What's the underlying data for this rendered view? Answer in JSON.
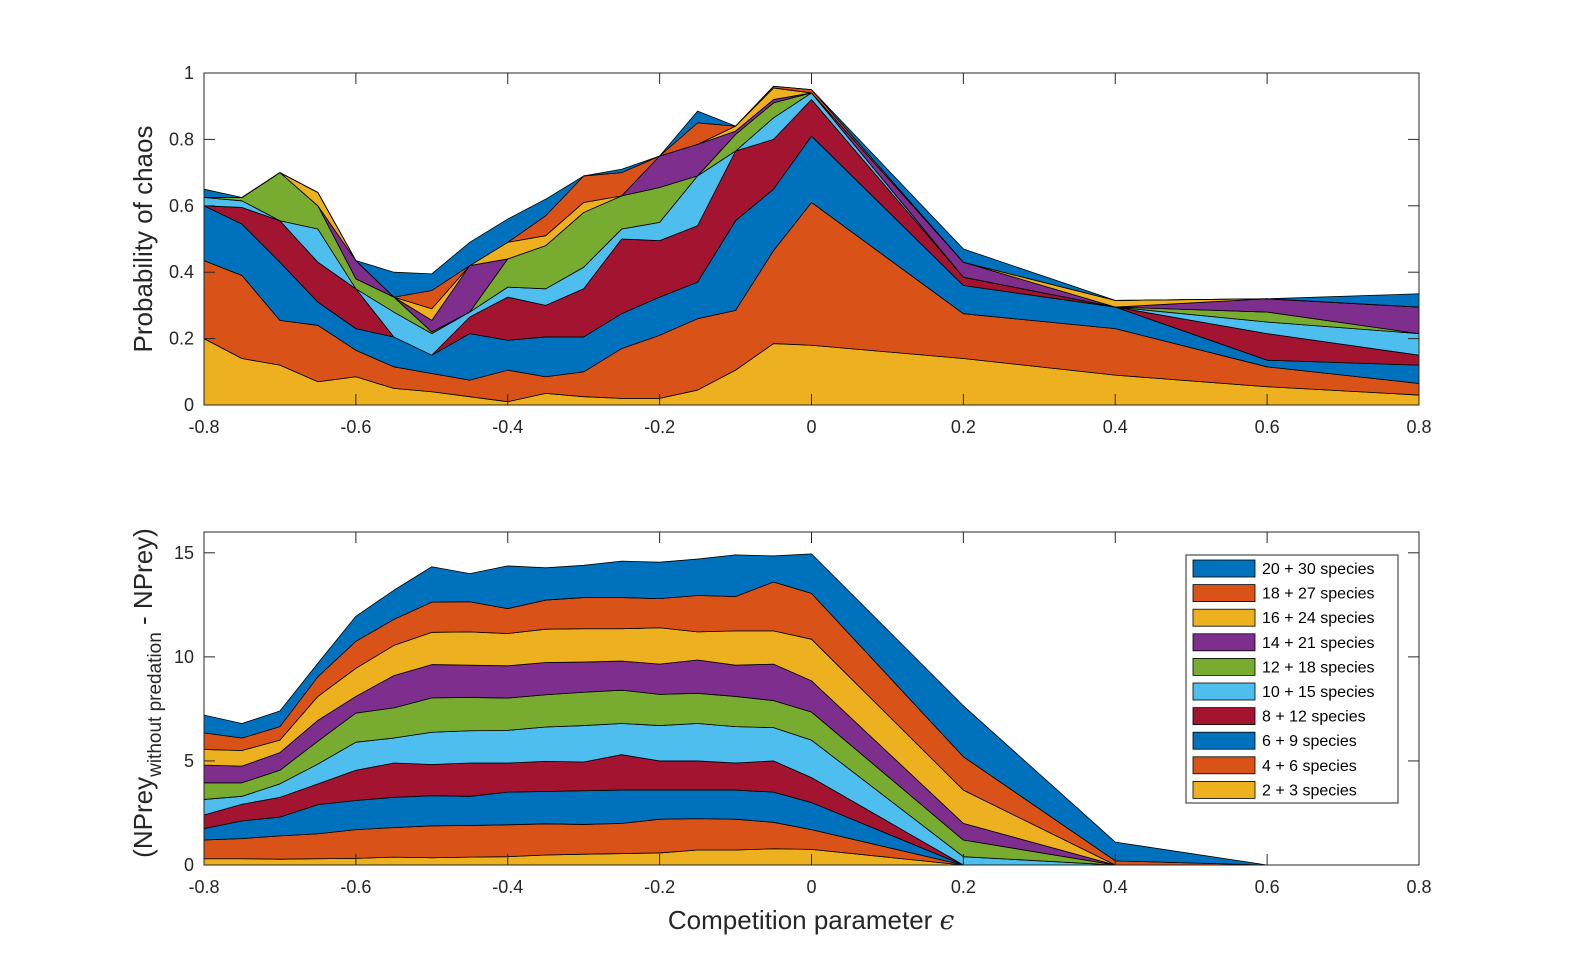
{
  "chart_data": [
    {
      "type": "area",
      "stacked": true,
      "ylabel": "Probability of chaos",
      "xlim": [
        -0.8,
        0.8
      ],
      "ylim": [
        0,
        1
      ],
      "xticks": [
        "-0.8",
        "-0.6",
        "-0.4",
        "-0.2",
        "0",
        "0.2",
        "0.4",
        "0.6",
        "0.8"
      ],
      "yticks": [
        "0",
        "0.2",
        "0.4",
        "0.6",
        "0.8",
        "1"
      ],
      "x": [
        -0.8,
        -0.75,
        -0.7,
        -0.65,
        -0.6,
        -0.55,
        -0.5,
        -0.45,
        -0.4,
        -0.35,
        -0.3,
        -0.25,
        -0.2,
        -0.15,
        -0.1,
        -0.05,
        0,
        0.2,
        0.4,
        0.6,
        0.8
      ],
      "series": [
        {
          "name": "2 + 3 species",
          "color": "#EDB120",
          "values": [
            0.2,
            0.14,
            0.12,
            0.07,
            0.085,
            0.05,
            0.04,
            0.025,
            0.01,
            0.035,
            0.025,
            0.02,
            0.02,
            0.045,
            0.105,
            0.185,
            0.18,
            0.14,
            0.09,
            0.055,
            0.03
          ]
        },
        {
          "name": "4 + 6 species",
          "color": "#D95319",
          "values": [
            0.235,
            0.25,
            0.135,
            0.17,
            0.08,
            0.065,
            0.055,
            0.05,
            0.095,
            0.05,
            0.075,
            0.15,
            0.19,
            0.215,
            0.18,
            0.28,
            0.43,
            0.135,
            0.14,
            0.06,
            0.035
          ]
        },
        {
          "name": "6 + 9 species",
          "color": "#0072BD",
          "values": [
            0.165,
            0.155,
            0.175,
            0.07,
            0.065,
            0.09,
            0.055,
            0.14,
            0.09,
            0.12,
            0.105,
            0.105,
            0.115,
            0.11,
            0.27,
            0.185,
            0.2,
            0.085,
            0.065,
            0.02,
            0.055
          ]
        },
        {
          "name": "8 + 12 species",
          "color": "#A2142F",
          "values": [
            0.0,
            0.05,
            0.125,
            0.12,
            0.12,
            0.0,
            0.0,
            0.05,
            0.13,
            0.095,
            0.145,
            0.225,
            0.17,
            0.17,
            0.21,
            0.15,
            0.11,
            0.025,
            0.0,
            0.08,
            0.03
          ]
        },
        {
          "name": "10 + 15 species",
          "color": "#4DBEEE",
          "values": [
            0.025,
            0.02,
            0.0,
            0.1,
            0.0,
            0.075,
            0.065,
            0.015,
            0.03,
            0.05,
            0.065,
            0.03,
            0.055,
            0.15,
            0.0,
            0.065,
            0.02,
            0.0,
            0.0,
            0.035,
            0.065
          ]
        },
        {
          "name": "12 + 18 species",
          "color": "#77AC30",
          "values": [
            0.0,
            0.01,
            0.145,
            0.07,
            0.03,
            0.045,
            0.005,
            0.0,
            0.085,
            0.13,
            0.165,
            0.1,
            0.105,
            0.0,
            0.05,
            0.045,
            0.0,
            0.0,
            0.0,
            0.03,
            0.0
          ]
        },
        {
          "name": "14 + 21 species",
          "color": "#7E2F8E",
          "values": [
            0.0,
            0.0,
            0.0,
            0.0,
            0.055,
            0.0,
            0.035,
            0.14,
            0.0,
            0.0,
            0.0,
            0.0,
            0.095,
            0.095,
            0.01,
            0.01,
            0.0,
            0.045,
            0.0,
            0.04,
            0.08
          ]
        },
        {
          "name": "16 + 24 species",
          "color": "#EDB120",
          "values": [
            0.0,
            0.0,
            0.0,
            0.04,
            0.0,
            0.0,
            0.035,
            0.0,
            0.05,
            0.03,
            0.03,
            0.0,
            0.0,
            0.0,
            0.015,
            0.035,
            0.0,
            0.0,
            0.02,
            0.0,
            0.0
          ]
        },
        {
          "name": "18 + 27 species",
          "color": "#D95319",
          "values": [
            0.0,
            0.0,
            0.0,
            0.0,
            0.0,
            0.0,
            0.055,
            0.0,
            0.0,
            0.06,
            0.08,
            0.07,
            0.0,
            0.065,
            0.0,
            0.005,
            0.01,
            0.0,
            0.0,
            0.0,
            0.0
          ]
        },
        {
          "name": "20 + 30 species",
          "color": "#0072BD",
          "values": [
            0.025,
            0.0,
            0.0,
            0.0,
            0.0,
            0.075,
            0.05,
            0.07,
            0.07,
            0.05,
            0.0,
            0.01,
            0.0,
            0.035,
            0.0,
            0.0,
            0.0,
            0.04,
            0.0,
            0.0,
            0.04
          ]
        }
      ]
    },
    {
      "type": "area",
      "stacked": true,
      "ylabel": "(NPrey",
      "ylabel_sub": "without predation",
      "ylabel_end": " - NPrey)",
      "xlabel": "Competition parameter ",
      "xlabel_symbol": "ϵ",
      "xlim": [
        -0.8,
        0.8
      ],
      "ylim": [
        0,
        16
      ],
      "xticks": [
        "-0.8",
        "-0.6",
        "-0.4",
        "-0.2",
        "0",
        "0.2",
        "0.4",
        "0.6",
        "0.8"
      ],
      "yticks": [
        "0",
        "5",
        "10",
        "15"
      ],
      "legend": "top-right",
      "x": [
        -0.8,
        -0.75,
        -0.7,
        -0.65,
        -0.6,
        -0.55,
        -0.5,
        -0.45,
        -0.4,
        -0.35,
        -0.3,
        -0.25,
        -0.2,
        -0.15,
        -0.1,
        -0.05,
        0,
        0.2,
        0.4,
        0.6,
        0.8
      ],
      "series": [
        {
          "name": "2 + 3 species",
          "color": "#EDB120",
          "values": [
            0.3,
            0.3,
            0.28,
            0.3,
            0.32,
            0.38,
            0.35,
            0.38,
            0.4,
            0.48,
            0.52,
            0.55,
            0.58,
            0.72,
            0.72,
            0.78,
            0.75,
            0.0,
            0.0,
            0.0,
            0.0
          ]
        },
        {
          "name": "4 + 6 species",
          "color": "#D95319",
          "values": [
            0.9,
            0.97,
            1.12,
            1.2,
            1.38,
            1.42,
            1.53,
            1.52,
            1.53,
            1.5,
            1.43,
            1.45,
            1.62,
            1.51,
            1.48,
            1.27,
            0.95,
            0.0,
            0.0,
            0.0,
            0.0
          ]
        },
        {
          "name": "6 + 9 species",
          "color": "#0072BD",
          "values": [
            0.55,
            0.85,
            0.9,
            1.4,
            1.4,
            1.45,
            1.45,
            1.4,
            1.57,
            1.55,
            1.62,
            1.6,
            1.4,
            1.37,
            1.4,
            1.45,
            1.3,
            0.0,
            0.0,
            0.0,
            0.0
          ]
        },
        {
          "name": "8 + 12 species",
          "color": "#A2142F",
          "values": [
            0.65,
            0.8,
            0.95,
            1.0,
            1.45,
            1.65,
            1.5,
            1.6,
            1.4,
            1.45,
            1.38,
            1.7,
            1.4,
            1.4,
            1.3,
            1.5,
            1.2,
            0.0,
            0.0,
            0.0,
            0.0
          ]
        },
        {
          "name": "10 + 15 species",
          "color": "#4DBEEE",
          "values": [
            0.75,
            0.38,
            0.65,
            0.95,
            1.35,
            1.2,
            1.55,
            1.55,
            1.57,
            1.65,
            1.75,
            1.5,
            1.7,
            1.8,
            1.75,
            1.6,
            1.8,
            0.4,
            0.0,
            0.0,
            0.0
          ]
        },
        {
          "name": "12 + 18 species",
          "color": "#77AC30",
          "values": [
            0.8,
            0.65,
            0.65,
            1.1,
            1.4,
            1.45,
            1.65,
            1.6,
            1.55,
            1.55,
            1.6,
            1.6,
            1.5,
            1.45,
            1.45,
            1.3,
            1.35,
            0.8,
            0.0,
            0.0,
            0.0
          ]
        },
        {
          "name": "14 + 21 species",
          "color": "#7E2F8E",
          "values": [
            0.85,
            0.8,
            0.85,
            1.0,
            0.8,
            1.55,
            1.6,
            1.55,
            1.55,
            1.55,
            1.45,
            1.4,
            1.45,
            1.6,
            1.5,
            1.75,
            1.5,
            0.8,
            0.0,
            0.0,
            0.0
          ]
        },
        {
          "name": "16 + 24 species",
          "color": "#EDB120",
          "values": [
            0.75,
            0.75,
            0.6,
            1.15,
            1.35,
            1.45,
            1.55,
            1.6,
            1.55,
            1.6,
            1.6,
            1.55,
            1.75,
            1.35,
            1.65,
            1.6,
            2.0,
            1.6,
            0.0,
            0.0,
            0.0
          ]
        },
        {
          "name": "18 + 27 species",
          "color": "#D95319",
          "values": [
            0.8,
            0.6,
            0.65,
            0.95,
            1.3,
            1.25,
            1.45,
            1.45,
            1.2,
            1.4,
            1.5,
            1.5,
            1.4,
            1.75,
            1.65,
            2.35,
            2.2,
            1.6,
            0.2,
            0.0,
            0.0
          ]
        },
        {
          "name": "20 + 30 species",
          "color": "#0072BD",
          "values": [
            0.85,
            0.7,
            0.75,
            0.65,
            1.2,
            1.4,
            1.7,
            1.35,
            2.05,
            1.55,
            1.55,
            1.75,
            1.75,
            1.75,
            2.0,
            1.25,
            1.9,
            2.45,
            0.9,
            0.0,
            0.0
          ]
        }
      ]
    }
  ]
}
